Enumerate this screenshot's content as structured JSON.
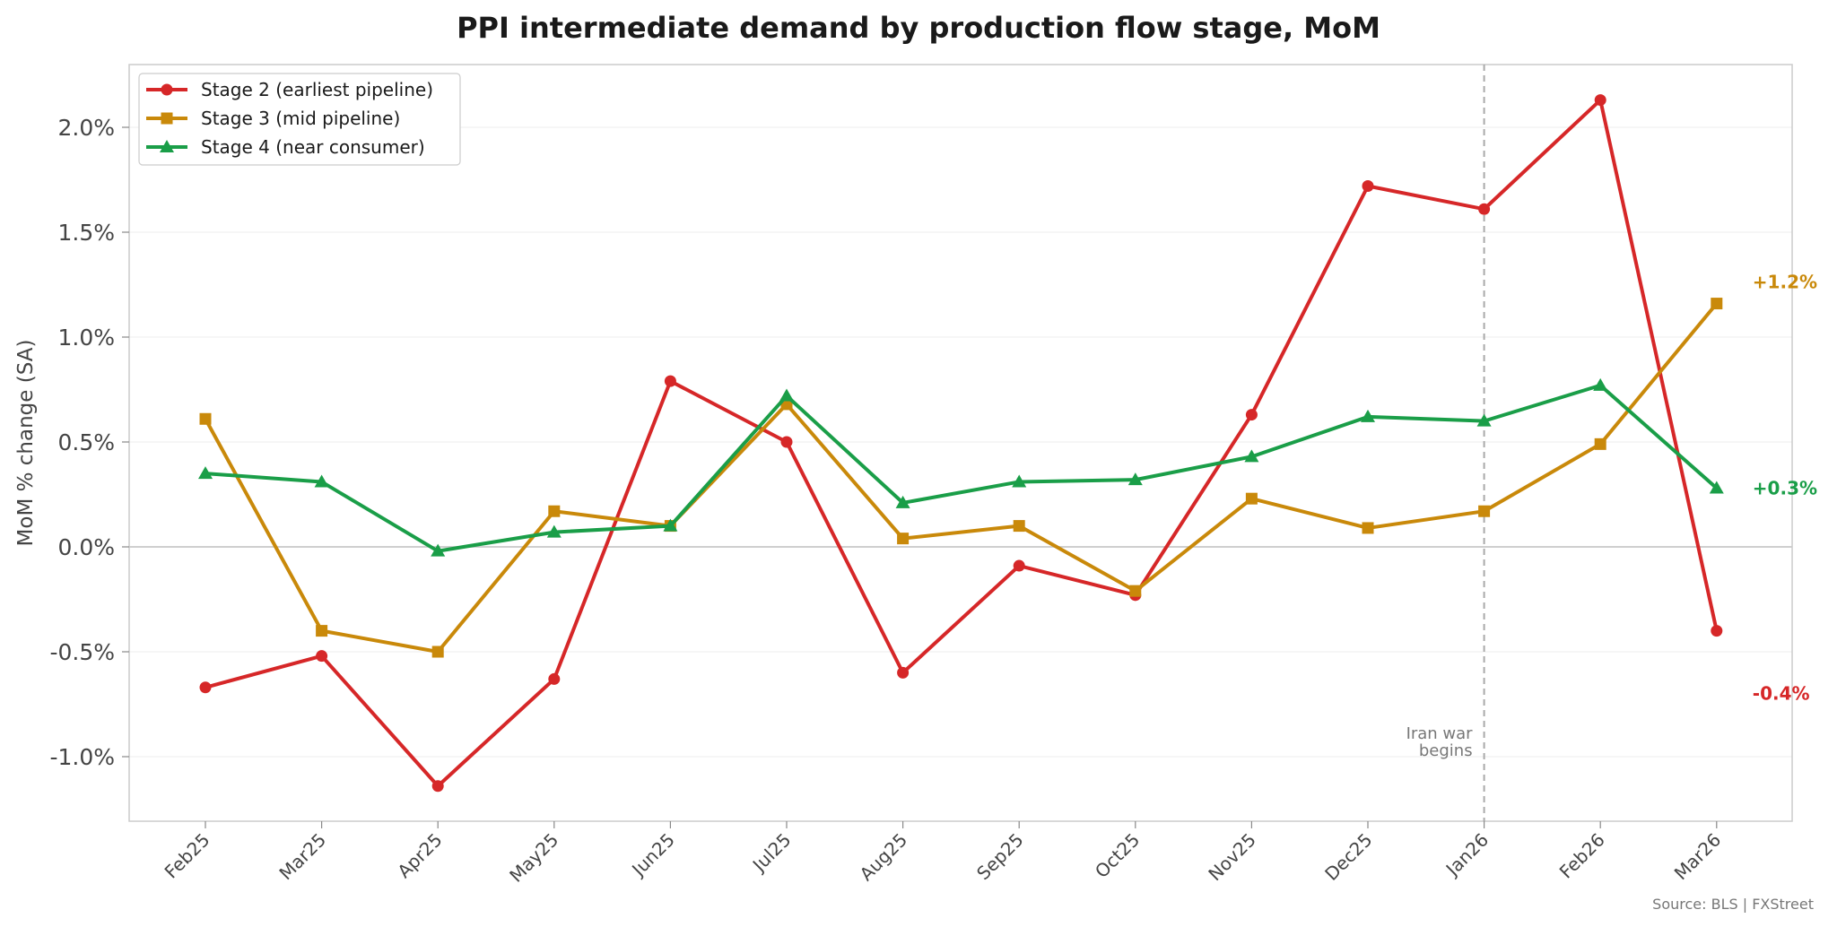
{
  "chart_data": {
    "type": "line",
    "title": "PPI intermediate demand by production flow stage, MoM",
    "ylabel": "MoM % change (SA)",
    "xlabel": "",
    "ylim": [
      -1.3,
      2.3
    ],
    "yticks": [
      -1.0,
      -0.5,
      0.0,
      0.5,
      1.0,
      1.5,
      2.0
    ],
    "ytick_labels": [
      "-1.0%",
      "-0.5%",
      "0.0%",
      "0.5%",
      "1.0%",
      "1.5%",
      "2.0%"
    ],
    "categories": [
      "Feb25",
      "Mar25",
      "Apr25",
      "May25",
      "Jun25",
      "Jul25",
      "Aug25",
      "Sep25",
      "Oct25",
      "Nov25",
      "Dec25",
      "Jan26",
      "Feb26",
      "Mar26"
    ],
    "grid": true,
    "legend_position": "top-left",
    "series": [
      {
        "name": "Stage 2 (earliest pipeline)",
        "color": "#d62728",
        "marker": "circle",
        "values": [
          -0.67,
          -0.52,
          -1.14,
          -0.63,
          0.79,
          0.5,
          -0.6,
          -0.09,
          -0.23,
          0.63,
          1.72,
          1.61,
          2.13,
          -0.4
        ],
        "end_label": "-0.4%"
      },
      {
        "name": "Stage 3 (mid pipeline)",
        "color": "#c9890a",
        "marker": "square",
        "values": [
          0.61,
          -0.4,
          -0.5,
          0.17,
          0.1,
          0.68,
          0.04,
          0.1,
          -0.21,
          0.23,
          0.09,
          0.17,
          0.49,
          1.16
        ],
        "end_label": "+1.2%"
      },
      {
        "name": "Stage 4 (near consumer)",
        "color": "#1a9e48",
        "marker": "triangle",
        "values": [
          0.35,
          0.31,
          -0.02,
          0.07,
          0.1,
          0.72,
          0.21,
          0.31,
          0.32,
          0.43,
          0.62,
          0.6,
          0.77,
          0.28
        ],
        "end_label": "+0.3%"
      }
    ],
    "annotation": {
      "category": "Jan26",
      "line1": "Iran war",
      "line2": "begins"
    },
    "source": "Source: BLS  |  FXStreet"
  }
}
